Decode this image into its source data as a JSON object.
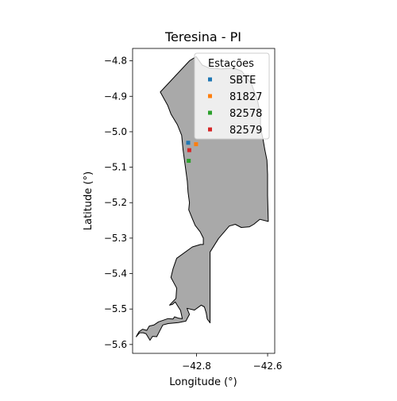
{
  "map": {
    "title": "Teresina - PI",
    "xlabel": "Longitude (°)",
    "ylabel": "Latitude (°)",
    "xlim": [
      -42.98,
      -42.58
    ],
    "ylim": [
      -5.625,
      -4.765
    ],
    "x_ticks": [
      {
        "value": -42.8,
        "label": "−42.8"
      },
      {
        "value": -42.6,
        "label": "−42.6"
      }
    ],
    "y_ticks": [
      {
        "value": -4.8,
        "label": "−4.8"
      },
      {
        "value": -4.9,
        "label": "−4.9"
      },
      {
        "value": -5.0,
        "label": "−5.0"
      },
      {
        "value": -5.1,
        "label": "−5.1"
      },
      {
        "value": -5.2,
        "label": "−5.2"
      },
      {
        "value": -5.3,
        "label": "−5.3"
      },
      {
        "value": -5.4,
        "label": "−5.4"
      },
      {
        "value": -5.5,
        "label": "−5.5"
      },
      {
        "value": -5.6,
        "label": "−5.6"
      }
    ],
    "region": {
      "fill": "#a9a9a9",
      "edge": "#000000",
      "boundary": [
        [
          -42.801,
          -4.788
        ],
        [
          -42.784,
          -4.812
        ],
        [
          -42.765,
          -4.82
        ],
        [
          -42.73,
          -4.823
        ],
        [
          -42.696,
          -4.82
        ],
        [
          -42.673,
          -4.829
        ],
        [
          -42.645,
          -4.866
        ],
        [
          -42.628,
          -4.913
        ],
        [
          -42.62,
          -4.955
        ],
        [
          -42.62,
          -4.99
        ],
        [
          -42.613,
          -5.02
        ],
        [
          -42.608,
          -5.05
        ],
        [
          -42.602,
          -5.08
        ],
        [
          -42.6,
          -5.12
        ],
        [
          -42.6,
          -5.18
        ],
        [
          -42.598,
          -5.253
        ],
        [
          -42.622,
          -5.247
        ],
        [
          -42.639,
          -5.261
        ],
        [
          -42.651,
          -5.268
        ],
        [
          -42.674,
          -5.27
        ],
        [
          -42.691,
          -5.261
        ],
        [
          -42.708,
          -5.266
        ],
        [
          -42.738,
          -5.301
        ],
        [
          -42.762,
          -5.339
        ],
        [
          -42.762,
          -5.539
        ],
        [
          -42.77,
          -5.528
        ],
        [
          -42.773,
          -5.51
        ],
        [
          -42.778,
          -5.494
        ],
        [
          -42.787,
          -5.489
        ],
        [
          -42.806,
          -5.503
        ],
        [
          -42.827,
          -5.498
        ],
        [
          -42.82,
          -5.515
        ],
        [
          -42.83,
          -5.534
        ],
        [
          -42.851,
          -5.538
        ],
        [
          -42.88,
          -5.541
        ],
        [
          -42.895,
          -5.545
        ],
        [
          -42.912,
          -5.578
        ],
        [
          -42.924,
          -5.577
        ],
        [
          -42.931,
          -5.588
        ],
        [
          -42.942,
          -5.57
        ],
        [
          -42.95,
          -5.567
        ],
        [
          -42.96,
          -5.567
        ],
        [
          -42.97,
          -5.578
        ],
        [
          -42.962,
          -5.564
        ],
        [
          -42.952,
          -5.557
        ],
        [
          -42.94,
          -5.56
        ],
        [
          -42.933,
          -5.548
        ],
        [
          -42.92,
          -5.545
        ],
        [
          -42.907,
          -5.536
        ],
        [
          -42.88,
          -5.527
        ],
        [
          -42.866,
          -5.528
        ],
        [
          -42.862,
          -5.522
        ],
        [
          -42.85,
          -5.526
        ],
        [
          -42.84,
          -5.527
        ],
        [
          -42.845,
          -5.504
        ],
        [
          -42.86,
          -5.48
        ],
        [
          -42.868,
          -5.487
        ],
        [
          -42.876,
          -5.489
        ],
        [
          -42.858,
          -5.47
        ],
        [
          -42.856,
          -5.441
        ],
        [
          -42.872,
          -5.411
        ],
        [
          -42.866,
          -5.386
        ],
        [
          -42.856,
          -5.357
        ],
        [
          -42.812,
          -5.325
        ],
        [
          -42.789,
          -5.318
        ],
        [
          -42.781,
          -5.318
        ],
        [
          -42.781,
          -5.3
        ],
        [
          -42.79,
          -5.282
        ],
        [
          -42.804,
          -5.264
        ],
        [
          -42.812,
          -5.245
        ],
        [
          -42.822,
          -5.22
        ],
        [
          -42.82,
          -5.2
        ],
        [
          -42.824,
          -5.17
        ],
        [
          -42.826,
          -5.14
        ],
        [
          -42.83,
          -5.11
        ],
        [
          -42.834,
          -5.08
        ],
        [
          -42.838,
          -5.05
        ],
        [
          -42.842,
          -5.01
        ],
        [
          -42.854,
          -4.98
        ],
        [
          -42.872,
          -4.95
        ],
        [
          -42.881,
          -4.926
        ],
        [
          -42.902,
          -4.888
        ],
        [
          -42.82,
          -4.8
        ],
        [
          -42.801,
          -4.788
        ]
      ]
    },
    "legend": {
      "title": "Estações",
      "location": "upper right",
      "entries": [
        {
          "label": "SBTE",
          "color": "#1f77b4"
        },
        {
          "label": "81827",
          "color": "#ff7f0e"
        },
        {
          "label": "82578",
          "color": "#2ca02c"
        },
        {
          "label": "82579",
          "color": "#d62728"
        }
      ]
    },
    "stations": [
      {
        "label": "SBTE",
        "lon": -42.8235,
        "lat": -5.0311,
        "color": "#1f77b4"
      },
      {
        "label": "81827",
        "lon": -42.8015,
        "lat": -5.035,
        "color": "#ff7f0e"
      },
      {
        "label": "82578",
        "lon": -42.822,
        "lat": -5.082,
        "color": "#2ca02c"
      },
      {
        "label": "82579",
        "lon": -42.8205,
        "lat": -5.052,
        "color": "#d62728"
      }
    ]
  }
}
